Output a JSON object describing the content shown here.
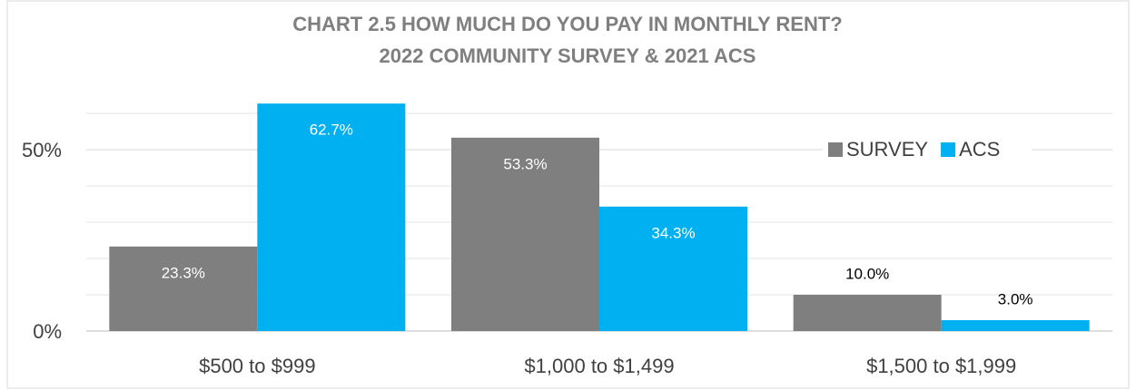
{
  "chart_data": {
    "type": "bar",
    "title": [
      "CHART 2.5 HOW MUCH DO YOU PAY IN MONTHLY RENT?",
      "2022 COMMUNITY SURVEY & 2021 ACS"
    ],
    "categories": [
      "$500 to $999",
      "$1,000 to $1,499",
      "$1,500 to $1,999"
    ],
    "series": [
      {
        "name": "SURVEY",
        "color": "#7f7f7f",
        "values": [
          23.3,
          53.3,
          10.0
        ],
        "value_labels": [
          "23.3%",
          "53.3%",
          "10.0%"
        ]
      },
      {
        "name": "ACS",
        "color": "#00b0f0",
        "values": [
          62.7,
          34.3,
          3.0
        ],
        "value_labels": [
          "62.7%",
          "34.3%",
          "3.0%"
        ]
      }
    ],
    "ylim": [
      0,
      65
    ],
    "yticks": [
      {
        "value": 0,
        "label": "0%"
      },
      {
        "value": 50,
        "label": "50%"
      }
    ],
    "minor_yticks": [
      10,
      20,
      30,
      40,
      60
    ],
    "grid": true,
    "legend": "upper right"
  }
}
